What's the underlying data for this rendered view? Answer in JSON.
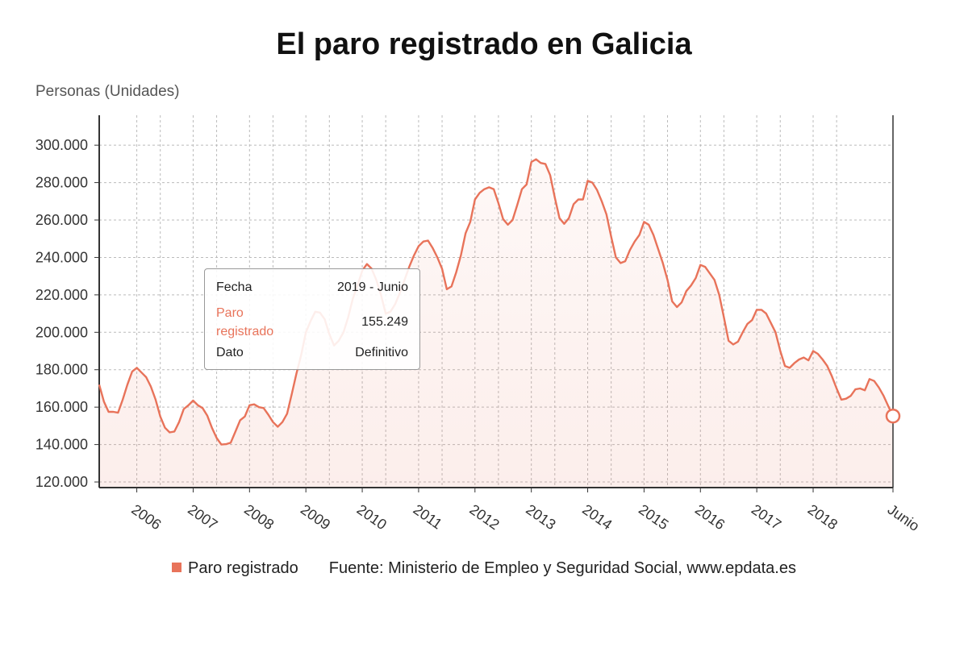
{
  "chart_data": {
    "type": "area",
    "title": "El paro registrado en Galicia",
    "ylabel": "Personas (Unidades)",
    "xlabel": "",
    "ylim": [
      117000,
      316000
    ],
    "yticks": [
      120000,
      140000,
      160000,
      180000,
      200000,
      220000,
      240000,
      260000,
      280000,
      300000
    ],
    "ytick_labels": [
      "120.000",
      "140.000",
      "160.000",
      "180.000",
      "200.000",
      "220.000",
      "240.000",
      "260.000",
      "280.000",
      "300.000"
    ],
    "x_ticks": [
      {
        "label": "2006",
        "x": "2006-01"
      },
      {
        "label": "2007",
        "x": "2007-01"
      },
      {
        "label": "2008",
        "x": "2008-01"
      },
      {
        "label": "2009",
        "x": "2009-01"
      },
      {
        "label": "2010",
        "x": "2010-01"
      },
      {
        "label": "2011",
        "x": "2011-01"
      },
      {
        "label": "2012",
        "x": "2012-01"
      },
      {
        "label": "2013",
        "x": "2013-01"
      },
      {
        "label": "2014",
        "x": "2014-01"
      },
      {
        "label": "2015",
        "x": "2015-01"
      },
      {
        "label": "2016",
        "x": "2016-01"
      },
      {
        "label": "2017",
        "x": "2017-01"
      },
      {
        "label": "2018",
        "x": "2018-01"
      },
      {
        "label": "Junio",
        "x": "2019-06"
      }
    ],
    "grid": true,
    "legend_position": "bottom",
    "series": [
      {
        "name": "Paro registrado",
        "color": "#e8735a",
        "points": [
          [
            "2005-05",
            172000
          ],
          [
            "2005-06",
            163000
          ],
          [
            "2005-07",
            157500
          ],
          [
            "2005-08",
            157500
          ],
          [
            "2005-09",
            157000
          ],
          [
            "2005-10",
            164000
          ],
          [
            "2005-11",
            172000
          ],
          [
            "2005-12",
            179000
          ],
          [
            "2006-01",
            181000
          ],
          [
            "2006-02",
            178500
          ],
          [
            "2006-03",
            176000
          ],
          [
            "2006-04",
            171000
          ],
          [
            "2006-05",
            164000
          ],
          [
            "2006-06",
            155000
          ],
          [
            "2006-07",
            149000
          ],
          [
            "2006-08",
            146500
          ],
          [
            "2006-09",
            147000
          ],
          [
            "2006-10",
            152000
          ],
          [
            "2006-11",
            159000
          ],
          [
            "2006-12",
            161000
          ],
          [
            "2007-01",
            163500
          ],
          [
            "2007-02",
            161000
          ],
          [
            "2007-03",
            159500
          ],
          [
            "2007-04",
            155500
          ],
          [
            "2007-05",
            149000
          ],
          [
            "2007-06",
            143500
          ],
          [
            "2007-07",
            140000
          ],
          [
            "2007-08",
            140200
          ],
          [
            "2007-09",
            141000
          ],
          [
            "2007-10",
            147000
          ],
          [
            "2007-11",
            153000
          ],
          [
            "2007-12",
            155000
          ],
          [
            "2008-01",
            161000
          ],
          [
            "2008-02",
            161500
          ],
          [
            "2008-03",
            160000
          ],
          [
            "2008-04",
            159500
          ],
          [
            "2008-05",
            156000
          ],
          [
            "2008-06",
            152000
          ],
          [
            "2008-07",
            149500
          ],
          [
            "2008-08",
            152000
          ],
          [
            "2008-09",
            156500
          ],
          [
            "2008-10",
            167000
          ],
          [
            "2008-11",
            178000
          ],
          [
            "2008-12",
            188000
          ],
          [
            "2009-01",
            200000
          ],
          [
            "2009-02",
            206000
          ],
          [
            "2009-03",
            211000
          ],
          [
            "2009-04",
            210500
          ],
          [
            "2009-05",
            207000
          ],
          [
            "2009-06",
            199000
          ],
          [
            "2009-07",
            193000
          ],
          [
            "2009-08",
            195500
          ],
          [
            "2009-09",
            200000
          ],
          [
            "2009-10",
            208000
          ],
          [
            "2009-11",
            218000
          ],
          [
            "2009-12",
            225000
          ],
          [
            "2010-01",
            233000
          ],
          [
            "2010-02",
            236500
          ],
          [
            "2010-03",
            234000
          ],
          [
            "2010-04",
            228000
          ],
          [
            "2010-05",
            220000
          ],
          [
            "2010-06",
            210000
          ],
          [
            "2010-07",
            211000
          ],
          [
            "2010-08",
            215000
          ],
          [
            "2010-09",
            221000
          ],
          [
            "2010-10",
            228000
          ],
          [
            "2010-11",
            235000
          ],
          [
            "2010-12",
            241000
          ],
          [
            "2011-01",
            246000
          ],
          [
            "2011-02",
            248500
          ],
          [
            "2011-03",
            249000
          ],
          [
            "2011-04",
            245000
          ],
          [
            "2011-05",
            240000
          ],
          [
            "2011-06",
            234000
          ],
          [
            "2011-07",
            223000
          ],
          [
            "2011-08",
            224500
          ],
          [
            "2011-09",
            232000
          ],
          [
            "2011-10",
            241000
          ],
          [
            "2011-11",
            253000
          ],
          [
            "2011-12",
            259000
          ],
          [
            "2012-01",
            271000
          ],
          [
            "2012-02",
            274500
          ],
          [
            "2012-03",
            276500
          ],
          [
            "2012-04",
            277500
          ],
          [
            "2012-05",
            276500
          ],
          [
            "2012-06",
            269000
          ],
          [
            "2012-07",
            260500
          ],
          [
            "2012-08",
            257500
          ],
          [
            "2012-09",
            260000
          ],
          [
            "2012-10",
            268000
          ],
          [
            "2012-11",
            276500
          ],
          [
            "2012-12",
            279000
          ],
          [
            "2013-01",
            291000
          ],
          [
            "2013-02",
            292500
          ],
          [
            "2013-03",
            290500
          ],
          [
            "2013-04",
            290000
          ],
          [
            "2013-05",
            284000
          ],
          [
            "2013-06",
            272000
          ],
          [
            "2013-07",
            261000
          ],
          [
            "2013-08",
            258000
          ],
          [
            "2013-09",
            261000
          ],
          [
            "2013-10",
            268500
          ],
          [
            "2013-11",
            271000
          ],
          [
            "2013-12",
            271000
          ],
          [
            "2014-01",
            281000
          ],
          [
            "2014-02",
            280000
          ],
          [
            "2014-03",
            276000
          ],
          [
            "2014-04",
            270000
          ],
          [
            "2014-05",
            263000
          ],
          [
            "2014-06",
            251000
          ],
          [
            "2014-07",
            240000
          ],
          [
            "2014-08",
            237000
          ],
          [
            "2014-09",
            238000
          ],
          [
            "2014-10",
            244000
          ],
          [
            "2014-11",
            248500
          ],
          [
            "2014-12",
            252000
          ],
          [
            "2015-01",
            259000
          ],
          [
            "2015-02",
            257500
          ],
          [
            "2015-03",
            252000
          ],
          [
            "2015-04",
            244500
          ],
          [
            "2015-05",
            237000
          ],
          [
            "2015-06",
            228000
          ],
          [
            "2015-07",
            216500
          ],
          [
            "2015-08",
            213500
          ],
          [
            "2015-09",
            216000
          ],
          [
            "2015-10",
            222000
          ],
          [
            "2015-11",
            225000
          ],
          [
            "2015-12",
            229000
          ],
          [
            "2016-01",
            236000
          ],
          [
            "2016-02",
            235000
          ],
          [
            "2016-03",
            231500
          ],
          [
            "2016-04",
            228000
          ],
          [
            "2016-05",
            220000
          ],
          [
            "2016-06",
            208000
          ],
          [
            "2016-07",
            195500
          ],
          [
            "2016-08",
            193500
          ],
          [
            "2016-09",
            195000
          ],
          [
            "2016-10",
            200000
          ],
          [
            "2016-11",
            204500
          ],
          [
            "2016-12",
            206500
          ],
          [
            "2017-01",
            212000
          ],
          [
            "2017-02",
            212000
          ],
          [
            "2017-03",
            210000
          ],
          [
            "2017-04",
            205000
          ],
          [
            "2017-05",
            200000
          ],
          [
            "2017-06",
            190000
          ],
          [
            "2017-07",
            182000
          ],
          [
            "2017-08",
            181000
          ],
          [
            "2017-09",
            183500
          ],
          [
            "2017-10",
            185500
          ],
          [
            "2017-11",
            186500
          ],
          [
            "2017-12",
            185000
          ],
          [
            "2018-01",
            190000
          ],
          [
            "2018-02",
            188500
          ],
          [
            "2018-03",
            185500
          ],
          [
            "2018-04",
            182000
          ],
          [
            "2018-05",
            176500
          ],
          [
            "2018-06",
            170000
          ],
          [
            "2018-07",
            164000
          ],
          [
            "2018-08",
            164500
          ],
          [
            "2018-09",
            166000
          ],
          [
            "2018-10",
            169500
          ],
          [
            "2018-11",
            170000
          ],
          [
            "2018-12",
            169000
          ],
          [
            "2019-01",
            175000
          ],
          [
            "2019-02",
            174000
          ],
          [
            "2019-03",
            170500
          ],
          [
            "2019-04",
            166000
          ],
          [
            "2019-05",
            160500
          ],
          [
            "2019-06",
            155249
          ]
        ]
      }
    ],
    "highlight": {
      "x": "2019-06",
      "y": 155249
    }
  },
  "tooltip": {
    "rows": [
      {
        "key": "Fecha",
        "value": "2019 - Junio",
        "key_color": "#222222"
      },
      {
        "key": "Paro registrado",
        "value": "155.249",
        "key_color": "#e8735a"
      },
      {
        "key": "Dato",
        "value": "Definitivo",
        "key_color": "#222222"
      }
    ]
  },
  "legend": {
    "series_label": "Paro registrado",
    "source": "Fuente: Ministerio de Empleo y Seguridad Social, www.epdata.es"
  }
}
